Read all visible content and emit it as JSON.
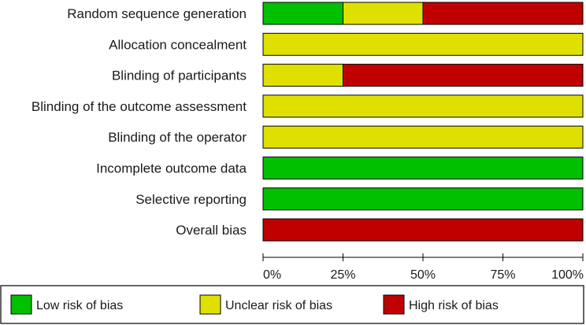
{
  "chart_data": {
    "type": "bar",
    "orientation": "horizontal",
    "stacked": true,
    "categories": [
      "Random sequence generation",
      "Allocation concealment",
      "Blinding of participants",
      "Blinding of the outcome assessment",
      "Blinding of the operator",
      "Incomplete outcome data",
      "Selective reporting",
      "Overall bias"
    ],
    "series": [
      {
        "name": "Low risk of bias",
        "color": "#00c000",
        "values": [
          25,
          0,
          0,
          0,
          0,
          100,
          100,
          0
        ]
      },
      {
        "name": "Unclear risk of bias",
        "color": "#e0e000",
        "values": [
          25,
          100,
          25,
          100,
          100,
          0,
          0,
          0
        ]
      },
      {
        "name": "High risk of bias",
        "color": "#c00000",
        "values": [
          50,
          0,
          75,
          0,
          0,
          0,
          0,
          100
        ]
      }
    ],
    "xlim": [
      0,
      100
    ],
    "xticks": [
      "0%",
      "25%",
      "50%",
      "75%",
      "100%"
    ],
    "grid": false,
    "legend_position": "bottom"
  }
}
